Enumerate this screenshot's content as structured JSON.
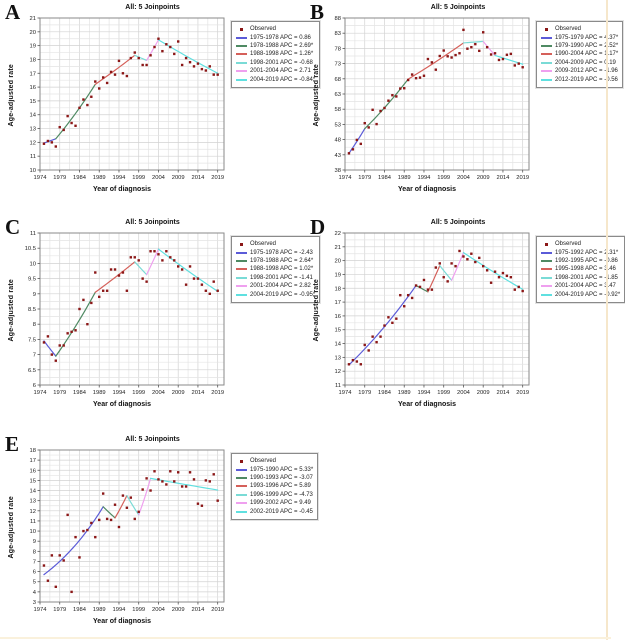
{
  "page": {
    "edge_color_right": "#f6e7cb",
    "edge_color_bottom": "#faf1dc",
    "observed_color": "#8b1717",
    "segment_colors": [
      "#5b5bd8",
      "#4f8a63",
      "#d5605a",
      "#7adbd6",
      "#efa0ef",
      "#5fe0e0"
    ]
  },
  "chart_data": [
    {
      "type": "scatter",
      "panel_label": "A",
      "title": "All: 5 Joinpoints",
      "xlabel": "Year of diagnosis",
      "ylabel": "Age-adjusted rate",
      "xlim": [
        1974,
        2020.6
      ],
      "ylim": [
        10,
        21
      ],
      "ytick_step": 1,
      "xticks": [
        1974,
        1979,
        1984,
        1989,
        1994,
        1999,
        2004,
        2009,
        2014,
        2019
      ],
      "grid": true,
      "legend_position": "right",
      "legend": [
        {
          "label": "Observed",
          "type": "point",
          "color": "#8b1717"
        },
        {
          "label": "1975-1978 APC = 0.86",
          "type": "line",
          "color": "#5b5bd8"
        },
        {
          "label": "1978-1988 APC = 2.69*",
          "type": "line",
          "color": "#4f8a63"
        },
        {
          "label": "1988-1998 APC = 1.26*",
          "type": "line",
          "color": "#d5605a"
        },
        {
          "label": "1998-2001 APC = -0.68",
          "type": "line",
          "color": "#7adbd6"
        },
        {
          "label": "2001-2004 APC = 2.71",
          "type": "line",
          "color": "#efa0ef"
        },
        {
          "label": "2004-2019 APC = -0.84*",
          "type": "line",
          "color": "#5fe0e0"
        }
      ],
      "observed": {
        "years_range": [
          1975,
          2019
        ],
        "values": [
          11.9,
          12.1,
          12.0,
          11.7,
          13.1,
          12.9,
          13.9,
          13.4,
          13.2,
          14.5,
          15.1,
          14.7,
          15.3,
          16.4,
          15.9,
          16.7,
          16.3,
          17.1,
          16.9,
          17.9,
          17.0,
          16.8,
          18.1,
          18.5,
          18.1,
          17.6,
          17.6,
          18.3,
          18.9,
          19.5,
          18.6,
          19.1,
          18.9,
          18.4,
          19.3,
          17.6,
          18.1,
          17.8,
          17.5,
          17.7,
          17.3,
          17.2,
          17.5,
          16.9,
          16.9
        ]
      },
      "trend_vertices": [
        [
          1975,
          11.95
        ],
        [
          1978,
          12.26
        ],
        [
          1988,
          16.2
        ],
        [
          1998,
          18.3
        ],
        [
          2001,
          17.93
        ],
        [
          2004,
          19.42
        ],
        [
          2019,
          17.0
        ]
      ]
    },
    {
      "type": "scatter",
      "panel_label": "B",
      "title": "All: 5 Joinpoints",
      "xlabel": "Year of diagnosis",
      "ylabel": "Age-adjusted rate",
      "xlim": [
        1974,
        2020.6
      ],
      "ylim": [
        38,
        88
      ],
      "ytick_step": 5,
      "xticks": [
        1974,
        1979,
        1984,
        1989,
        1994,
        1999,
        2004,
        2009,
        2014,
        2019
      ],
      "grid": true,
      "legend_position": "right",
      "legend": [
        {
          "label": "Observed",
          "type": "point",
          "color": "#8b1717"
        },
        {
          "label": "1975-1979 APC = 4.37*",
          "type": "line",
          "color": "#5b5bd8"
        },
        {
          "label": "1979-1990 APC = 2.52*",
          "type": "line",
          "color": "#4f8a63"
        },
        {
          "label": "1990-2004 APC = 1.17*",
          "type": "line",
          "color": "#d5605a"
        },
        {
          "label": "2004-2009 APC = 0.19",
          "type": "line",
          "color": "#7adbd6"
        },
        {
          "label": "2009-2012 APC = -1.96",
          "type": "line",
          "color": "#efa0ef"
        },
        {
          "label": "2012-2019 APC = -0.56",
          "type": "line",
          "color": "#5fe0e0"
        }
      ],
      "observed": {
        "years_range": [
          1975,
          2019
        ],
        "values": [
          43.5,
          44.8,
          47.9,
          46.6,
          53.4,
          52.0,
          57.8,
          53.1,
          57.4,
          58.4,
          60.8,
          62.6,
          62.2,
          64.8,
          64.9,
          67.6,
          69.4,
          68.2,
          68.4,
          69.0,
          74.5,
          73.4,
          71.0,
          75.5,
          77.3,
          75.4,
          75.0,
          75.8,
          76.4,
          84.1,
          77.9,
          78.4,
          79.4,
          77.2,
          83.3,
          78.4,
          76.0,
          76.4,
          74.2,
          74.5,
          75.9,
          76.2,
          72.4,
          73.0,
          71.8
        ]
      },
      "trend_vertices": [
        [
          1975,
          43.5
        ],
        [
          1979,
          51.6
        ],
        [
          1990,
          67.9
        ],
        [
          2004,
          79.8
        ],
        [
          2009,
          80.3
        ],
        [
          2012,
          75.7
        ],
        [
          2019,
          72.8
        ]
      ]
    },
    {
      "type": "scatter",
      "panel_label": "C",
      "title": "All: 5 Joinpoints",
      "xlabel": "Year of diagnosis",
      "ylabel": "Age-adjusted rate",
      "xlim": [
        1974,
        2020.6
      ],
      "ylim": [
        6,
        11
      ],
      "ytick_step": 0.5,
      "xticks": [
        1974,
        1979,
        1984,
        1989,
        1994,
        1999,
        2004,
        2009,
        2014,
        2019
      ],
      "grid": true,
      "legend_position": "right",
      "legend": [
        {
          "label": "Observed",
          "type": "point",
          "color": "#8b1717"
        },
        {
          "label": "1975-1978 APC = -2.43",
          "type": "line",
          "color": "#5b5bd8"
        },
        {
          "label": "1978-1988 APC = 2.64*",
          "type": "line",
          "color": "#4f8a63"
        },
        {
          "label": "1988-1998 APC = 1.02*",
          "type": "line",
          "color": "#d5605a"
        },
        {
          "label": "1998-2001 APC = -1.41",
          "type": "line",
          "color": "#7adbd6"
        },
        {
          "label": "2001-2004 APC = 2.82",
          "type": "line",
          "color": "#efa0ef"
        },
        {
          "label": "2004-2019 APC = -0.95*",
          "type": "line",
          "color": "#5fe0e0"
        }
      ],
      "observed": {
        "years_range": [
          1975,
          2019
        ],
        "values": [
          7.4,
          7.6,
          7.0,
          6.8,
          7.3,
          7.3,
          7.7,
          7.75,
          7.8,
          8.5,
          8.8,
          8.0,
          8.7,
          9.7,
          8.9,
          9.1,
          9.1,
          9.8,
          9.8,
          9.6,
          9.7,
          9.1,
          10.2,
          10.2,
          10.1,
          9.5,
          9.4,
          10.4,
          10.4,
          10.3,
          10.1,
          10.4,
          10.2,
          10.1,
          9.9,
          9.8,
          9.3,
          9.9,
          9.5,
          9.5,
          9.3,
          9.1,
          9.0,
          9.4,
          9.1
        ]
      },
      "trend_vertices": [
        [
          1975,
          7.45
        ],
        [
          1978,
          6.95
        ],
        [
          1988,
          9.05
        ],
        [
          1998,
          10.05
        ],
        [
          2001,
          9.63
        ],
        [
          2004,
          10.47
        ],
        [
          2019,
          9.08
        ]
      ]
    },
    {
      "type": "scatter",
      "panel_label": "D",
      "title": "All: 5 Joinpoints",
      "xlabel": "Year of diagnosis",
      "ylabel": "Age-adjusted rate",
      "xlim": [
        1974,
        2020.6
      ],
      "ylim": [
        11,
        22
      ],
      "ytick_step": 1,
      "xticks": [
        1974,
        1979,
        1984,
        1989,
        1994,
        1999,
        2004,
        2009,
        2014,
        2019
      ],
      "grid": true,
      "legend_position": "right",
      "legend": [
        {
          "label": "Observed",
          "type": "point",
          "color": "#8b1717"
        },
        {
          "label": "1975-1992 APC = 2.31*",
          "type": "line",
          "color": "#5b5bd8"
        },
        {
          "label": "1992-1995 APC = -0.86",
          "type": "line",
          "color": "#4f8a63"
        },
        {
          "label": "1995-1998 APC = 3.46",
          "type": "line",
          "color": "#d5605a"
        },
        {
          "label": "1998-2001 APC = -1.85",
          "type": "line",
          "color": "#7adbd6"
        },
        {
          "label": "2001-2004 APC = 3.47",
          "type": "line",
          "color": "#efa0ef"
        },
        {
          "label": "2004-2019 APC = -0.92*",
          "type": "line",
          "color": "#5fe0e0"
        }
      ],
      "observed": {
        "years_range": [
          1975,
          2019
        ],
        "values": [
          12.5,
          12.8,
          12.7,
          12.5,
          13.9,
          13.5,
          14.5,
          14.1,
          14.5,
          15.3,
          15.9,
          15.5,
          15.8,
          17.5,
          16.7,
          17.5,
          17.3,
          18.2,
          18.1,
          18.6,
          17.9,
          17.9,
          19.5,
          19.8,
          18.8,
          18.5,
          19.8,
          19.6,
          20.7,
          20.3,
          20.1,
          20.5,
          19.9,
          20.2,
          19.6,
          19.3,
          18.4,
          19.2,
          18.8,
          19.1,
          18.9,
          18.8,
          17.9,
          18.1,
          17.8
        ]
      },
      "trend_vertices": [
        [
          1975,
          12.45
        ],
        [
          1992,
          18.2
        ],
        [
          1995,
          17.74
        ],
        [
          1998,
          19.64
        ],
        [
          2001,
          18.58
        ],
        [
          2004,
          20.58
        ],
        [
          2019,
          17.92
        ]
      ]
    },
    {
      "type": "scatter",
      "panel_label": "E",
      "title": "All: 5 Joinpoints",
      "xlabel": "Year of diagnosis",
      "ylabel": "Age-adjusted rate",
      "xlim": [
        1974,
        2020.6
      ],
      "ylim": [
        3,
        18
      ],
      "ytick_step": 1,
      "xticks": [
        1974,
        1979,
        1984,
        1989,
        1994,
        1999,
        2004,
        2009,
        2014,
        2019
      ],
      "grid": true,
      "legend_position": "right",
      "legend": [
        {
          "label": "Observed",
          "type": "point",
          "color": "#8b1717"
        },
        {
          "label": "1975-1990 APC = 5.33*",
          "type": "line",
          "color": "#5b5bd8"
        },
        {
          "label": "1990-1993 APC = -3.07",
          "type": "line",
          "color": "#4f8a63"
        },
        {
          "label": "1993-1996 APC = 5.89",
          "type": "line",
          "color": "#d5605a"
        },
        {
          "label": "1996-1999 APC = -4.73",
          "type": "line",
          "color": "#7adbd6"
        },
        {
          "label": "1999-2002 APC = 9.49",
          "type": "line",
          "color": "#efa0ef"
        },
        {
          "label": "2002-2019 APC = -0.45",
          "type": "line",
          "color": "#5fe0e0"
        }
      ],
      "observed": {
        "years_range": [
          1975,
          2019
        ],
        "values": [
          6.6,
          5.1,
          7.6,
          4.5,
          7.6,
          7.1,
          11.6,
          4.0,
          9.4,
          7.4,
          10.0,
          10.1,
          10.8,
          9.4,
          11.1,
          13.7,
          11.2,
          11.1,
          12.6,
          10.4,
          13.5,
          12.3,
          13.3,
          11.2,
          11.9,
          14.1,
          15.2,
          14.0,
          15.9,
          15.1,
          14.9,
          14.6,
          15.9,
          14.9,
          15.8,
          14.4,
          14.4,
          15.8,
          15.1,
          12.7,
          12.5,
          15.0,
          14.9,
          15.6,
          13.0
        ]
      },
      "trend_vertices": [
        [
          1975,
          5.7
        ],
        [
          1990,
          12.4
        ],
        [
          1993,
          11.3
        ],
        [
          1996,
          13.5
        ],
        [
          1999,
          11.6
        ],
        [
          2002,
          15.2
        ],
        [
          2019,
          14.05
        ]
      ]
    }
  ]
}
